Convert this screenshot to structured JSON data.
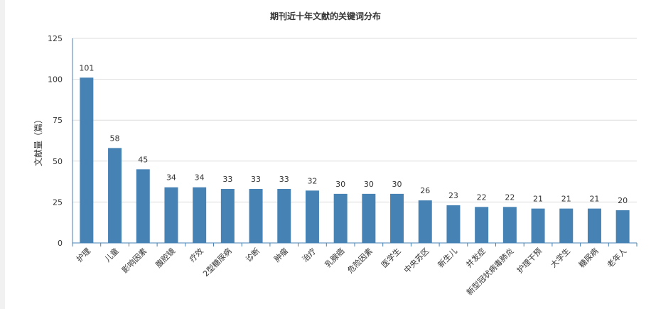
{
  "chart_data": {
    "type": "bar",
    "title": "期刊近十年文献的关键词分布",
    "xlabel": "",
    "ylabel": "文献量（篇）",
    "ylim": [
      0,
      125
    ],
    "yticks": [
      0,
      25,
      50,
      75,
      100,
      125
    ],
    "grid": true,
    "categories": [
      "护理",
      "儿童",
      "影响因素",
      "腹腔镜",
      "疗效",
      "2型糖尿病",
      "诊断",
      "肿瘤",
      "治疗",
      "乳腺癌",
      "危险因素",
      "医学生",
      "中央苏区",
      "新生儿",
      "并发症",
      "新型冠状病毒肺炎",
      "护理干预",
      "大学生",
      "糖尿病",
      "老年人"
    ],
    "values": [
      101,
      58,
      45,
      34,
      34,
      33,
      33,
      33,
      32,
      30,
      30,
      30,
      26,
      23,
      22,
      22,
      21,
      21,
      21,
      20
    ],
    "colors": {
      "bar": "#4682b4",
      "axis": "#4682b4",
      "grid": "#dddddd"
    }
  }
}
